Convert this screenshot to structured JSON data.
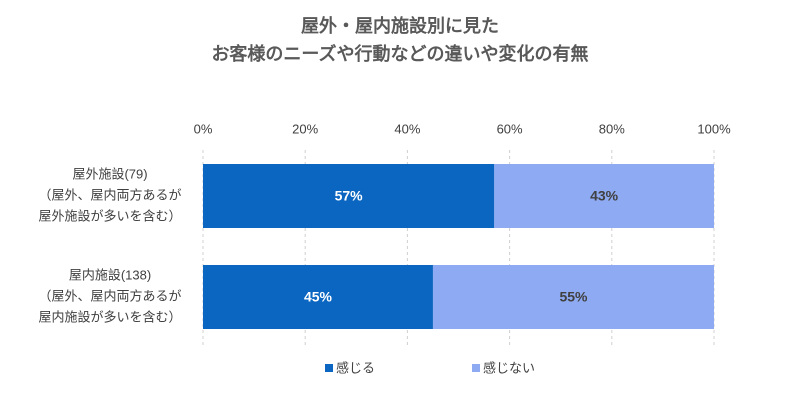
{
  "chart_data": {
    "type": "stacked-bar-horizontal",
    "title": [
      "屋外・屋内施設別に見た",
      "お客様のニーズや行動などの違いや変化の有無"
    ],
    "categories": [
      [
        "屋外施設(79)",
        "（屋外、屋内両方あるが",
        "屋外施設が多いを含む）"
      ],
      [
        "屋内施設(138)",
        "（屋外、屋内両方あるが",
        "屋内施設が多いを含む）"
      ]
    ],
    "series": [
      {
        "name": "感じる",
        "color": "#0a66c0",
        "values": [
          57,
          45
        ],
        "value_labels": [
          "57%",
          "45%"
        ],
        "label_color": "#ffffff"
      },
      {
        "name": "感じない",
        "color": "#8eaaf2",
        "values": [
          43,
          55
        ],
        "value_labels": [
          "43%",
          "55%"
        ],
        "label_color": "#404040"
      }
    ],
    "xlim": [
      0,
      100
    ],
    "xticks": [
      {
        "value": 0,
        "label": "0%"
      },
      {
        "value": 20,
        "label": "20%"
      },
      {
        "value": 40,
        "label": "40%"
      },
      {
        "value": 60,
        "label": "60%"
      },
      {
        "value": 80,
        "label": "80%"
      },
      {
        "value": 100,
        "label": "100%"
      }
    ],
    "grid": true
  }
}
